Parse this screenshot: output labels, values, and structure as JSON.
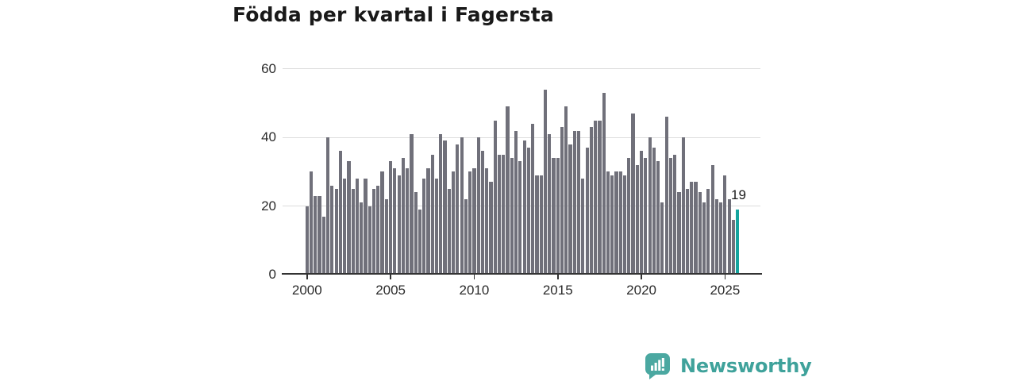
{
  "title": "Födda per kvartal i Fagersta",
  "highlight_label": "19",
  "logo": {
    "text": "Newsworthy"
  },
  "colors": {
    "bar": "#70707a",
    "highlight": "#14a49e",
    "grid": "#dcdcdc",
    "axis": "#333333",
    "title": "#191919",
    "tick_text": "#2b2b2b",
    "logo_teal": "#4ba8a1",
    "logo_text": "#3fa29b",
    "background": "#ffffff"
  },
  "chart_data": {
    "type": "bar",
    "title": "Födda per kvartal i Fagersta",
    "xlabel": "",
    "ylabel": "",
    "ylim": [
      0,
      60
    ],
    "y_ticks": [
      0,
      20,
      40,
      60
    ],
    "x_tick_years": [
      2000,
      2005,
      2010,
      2015,
      2020,
      2025
    ],
    "grid": "horizontal",
    "legend": "none",
    "highlight": {
      "index": 103,
      "label": "19"
    },
    "categories": [
      "2000Q1",
      "2000Q2",
      "2000Q3",
      "2000Q4",
      "2001Q1",
      "2001Q2",
      "2001Q3",
      "2001Q4",
      "2002Q1",
      "2002Q2",
      "2002Q3",
      "2002Q4",
      "2003Q1",
      "2003Q2",
      "2003Q3",
      "2003Q4",
      "2004Q1",
      "2004Q2",
      "2004Q3",
      "2004Q4",
      "2005Q1",
      "2005Q2",
      "2005Q3",
      "2005Q4",
      "2006Q1",
      "2006Q2",
      "2006Q3",
      "2006Q4",
      "2007Q1",
      "2007Q2",
      "2007Q3",
      "2007Q4",
      "2008Q1",
      "2008Q2",
      "2008Q3",
      "2008Q4",
      "2009Q1",
      "2009Q2",
      "2009Q3",
      "2009Q4",
      "2010Q1",
      "2010Q2",
      "2010Q3",
      "2010Q4",
      "2011Q1",
      "2011Q2",
      "2011Q3",
      "2011Q4",
      "2012Q1",
      "2012Q2",
      "2012Q3",
      "2012Q4",
      "2013Q1",
      "2013Q2",
      "2013Q3",
      "2013Q4",
      "2014Q1",
      "2014Q2",
      "2014Q3",
      "2014Q4",
      "2015Q1",
      "2015Q2",
      "2015Q3",
      "2015Q4",
      "2016Q1",
      "2016Q2",
      "2016Q3",
      "2016Q4",
      "2017Q1",
      "2017Q2",
      "2017Q3",
      "2017Q4",
      "2018Q1",
      "2018Q2",
      "2018Q3",
      "2018Q4",
      "2019Q1",
      "2019Q2",
      "2019Q3",
      "2019Q4",
      "2020Q1",
      "2020Q2",
      "2020Q3",
      "2020Q4",
      "2021Q1",
      "2021Q2",
      "2021Q3",
      "2021Q4",
      "2022Q1",
      "2022Q2",
      "2022Q3",
      "2022Q4",
      "2023Q1",
      "2023Q2",
      "2023Q3",
      "2023Q4",
      "2024Q1",
      "2024Q2",
      "2024Q3",
      "2024Q4",
      "2025Q1",
      "2025Q2",
      "2025Q3",
      "2025Q4"
    ],
    "values": [
      20,
      30,
      23,
      23,
      17,
      40,
      26,
      25,
      36,
      28,
      33,
      25,
      28,
      21,
      28,
      20,
      25,
      26,
      30,
      22,
      33,
      31,
      29,
      34,
      31,
      41,
      24,
      19,
      28,
      31,
      35,
      28,
      41,
      39,
      25,
      30,
      38,
      40,
      22,
      30,
      31,
      40,
      36,
      31,
      27,
      45,
      35,
      35,
      49,
      34,
      42,
      33,
      39,
      37,
      44,
      29,
      29,
      54,
      41,
      34,
      34,
      43,
      49,
      38,
      42,
      42,
      28,
      37,
      43,
      45,
      45,
      53,
      30,
      29,
      30,
      30,
      29,
      34,
      47,
      32,
      36,
      34,
      40,
      37,
      33,
      21,
      46,
      34,
      35,
      24,
      40,
      25,
      27,
      27,
      24,
      21,
      25,
      32,
      22,
      21,
      29,
      22,
      16,
      19
    ]
  }
}
